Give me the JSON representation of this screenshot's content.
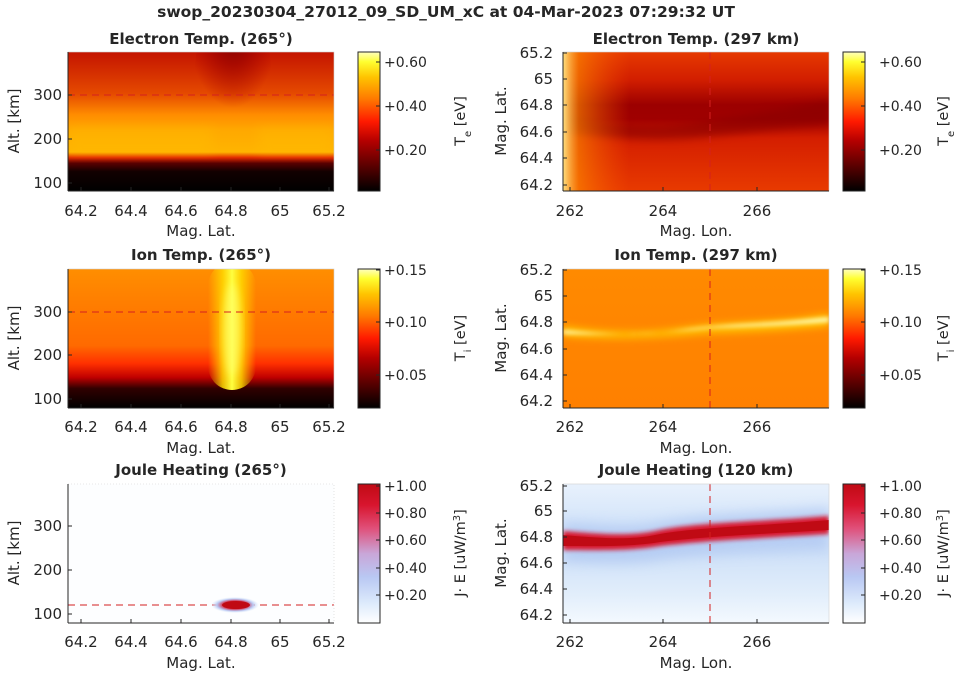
{
  "figure": {
    "title": "swop_20230304_27012_09_SD_UM_xC at 04-Mar-2023 07:29:32 UT"
  },
  "colors": {
    "hot": [
      "#000000",
      "#5a0000",
      "#b40000",
      "#ff1a00",
      "#ff7800",
      "#ffc400",
      "#ffff30",
      "#ffffc0"
    ],
    "joule": [
      "#ffffff",
      "#dbe9fb",
      "#b9c8f3",
      "#c9a6d8",
      "#e0507a",
      "#d8152e",
      "#c00a14"
    ],
    "dashed_line": "#d42020"
  },
  "panels": [
    {
      "id": "te-alt",
      "title": "Electron Temp. (265°)",
      "xlabel": "Mag. Lat.",
      "ylabel": "Alt. [km]",
      "xticks": [
        "64.2",
        "64.4",
        "64.6",
        "64.8",
        "65",
        "65.2"
      ],
      "yticks": [
        "100",
        "200",
        "300"
      ],
      "colorbar_ticks": [
        "+0.20",
        "+0.40",
        "+0.60"
      ],
      "colorbar_label": "T",
      "colorbar_sub": "e",
      "colorbar_unit": " [eV]",
      "colormap": "hot"
    },
    {
      "id": "te-map",
      "title": "Electron Temp. (297 km)",
      "xlabel": "Mag. Lon.",
      "ylabel": "Mag. Lat.",
      "xticks": [
        "262",
        "264",
        "266"
      ],
      "yticks": [
        "64.2",
        "64.4",
        "64.6",
        "64.8",
        "65",
        "65.2"
      ],
      "colorbar_ticks": [
        "+0.20",
        "+0.40",
        "+0.60"
      ],
      "colorbar_label": "T",
      "colorbar_sub": "e",
      "colorbar_unit": " [eV]",
      "colormap": "hot"
    },
    {
      "id": "ti-alt",
      "title": "Ion Temp. (265°)",
      "xlabel": "Mag. Lat.",
      "ylabel": "Alt. [km]",
      "xticks": [
        "64.2",
        "64.4",
        "64.6",
        "64.8",
        "65",
        "65.2"
      ],
      "yticks": [
        "100",
        "200",
        "300"
      ],
      "colorbar_ticks": [
        "+0.05",
        "+0.10",
        "+0.15"
      ],
      "colorbar_label": "T",
      "colorbar_sub": "i",
      "colorbar_unit": " [eV]",
      "colormap": "hot"
    },
    {
      "id": "ti-map",
      "title": "Ion Temp. (297 km)",
      "xlabel": "Mag. Lon.",
      "ylabel": "Mag. Lat.",
      "xticks": [
        "262",
        "264",
        "266"
      ],
      "yticks": [
        "64.2",
        "64.4",
        "64.6",
        "64.8",
        "65",
        "65.2"
      ],
      "colorbar_ticks": [
        "+0.05",
        "+0.10",
        "+0.15"
      ],
      "colorbar_label": "T",
      "colorbar_sub": "i",
      "colorbar_unit": " [eV]",
      "colormap": "hot"
    },
    {
      "id": "joule-alt",
      "title": "Joule Heating (265°)",
      "xlabel": "Mag. Lat.",
      "ylabel": "Alt. [km]",
      "xticks": [
        "64.2",
        "64.4",
        "64.6",
        "64.8",
        "65",
        "65.2"
      ],
      "yticks": [
        "100",
        "200",
        "300"
      ],
      "colorbar_ticks": [
        "+0.20",
        "+0.40",
        "+0.60",
        "+0.80",
        "+1.00"
      ],
      "colorbar_label": "J· E [uW/m",
      "colorbar_sup": "3",
      "colorbar_unit": "]",
      "colormap": "joule"
    },
    {
      "id": "joule-map",
      "title": "Joule Heating (120 km)",
      "xlabel": "Mag. Lon.",
      "ylabel": "Mag. Lat.",
      "xticks": [
        "262",
        "264",
        "266"
      ],
      "yticks": [
        "64.2",
        "64.4",
        "64.6",
        "64.8",
        "65",
        "65.2"
      ],
      "colorbar_ticks": [
        "+0.20",
        "+0.40",
        "+0.60",
        "+0.80",
        "+1.00"
      ],
      "colorbar_label": "J· E [uW/m",
      "colorbar_sup": "3",
      "colorbar_unit": "]",
      "colormap": "joule"
    }
  ],
  "chart_data": [
    {
      "type": "heatmap",
      "title": "Electron Temp. (265°)",
      "xlabel": "Mag. Lat.",
      "ylabel": "Alt. [km]",
      "xlim": [
        64.13,
        65.25
      ],
      "ylim": [
        78,
        398
      ],
      "colorbar": {
        "label": "T_e [eV]",
        "range": [
          0.02,
          0.65
        ],
        "ticks": [
          0.2,
          0.4,
          0.6
        ]
      },
      "reference_line": {
        "axis": "y",
        "value": 300,
        "style": "dashed"
      },
      "features": [
        {
          "description": "dark cold band",
          "alt_range": [
            78,
            150
          ],
          "value": 0.05
        },
        {
          "description": "warm band",
          "alt_range": [
            150,
            260
          ],
          "value": 0.45
        },
        {
          "description": "cooler patch",
          "center_lat": 64.8,
          "alt_range": [
            230,
            398
          ],
          "value": 0.15
        }
      ]
    },
    {
      "type": "heatmap",
      "title": "Electron Temp. (297 km)",
      "xlabel": "Mag. Lon.",
      "ylabel": "Mag. Lat.",
      "xlim": [
        261.8,
        267.5
      ],
      "ylim": [
        64.15,
        65.25
      ],
      "colorbar": {
        "label": "T_e [eV]",
        "range": [
          0.02,
          0.65
        ],
        "ticks": [
          0.2,
          0.4,
          0.6
        ]
      },
      "reference_line": {
        "axis": "x",
        "value": 265,
        "style": "dashed"
      },
      "features": [
        {
          "description": "cool band",
          "lat_center": 64.75,
          "value": 0.18
        },
        {
          "description": "warm edge",
          "lon": 261.8,
          "lat_center": 64.45,
          "value": 0.6
        }
      ]
    },
    {
      "type": "heatmap",
      "title": "Ion Temp. (265°)",
      "xlabel": "Mag. Lat.",
      "ylabel": "Alt. [km]",
      "xlim": [
        64.13,
        65.25
      ],
      "ylim": [
        78,
        398
      ],
      "colorbar": {
        "label": "T_i [eV]",
        "range": [
          0.015,
          0.15
        ],
        "ticks": [
          0.05,
          0.1,
          0.15
        ]
      },
      "reference_line": {
        "axis": "y",
        "value": 300,
        "style": "dashed"
      },
      "features": [
        {
          "description": "hot column",
          "center_lat": 64.8,
          "alt_range": [
            130,
            398
          ],
          "value": 0.145
        },
        {
          "description": "cold band",
          "alt_range": [
            78,
            120
          ],
          "value": 0.02
        }
      ]
    },
    {
      "type": "heatmap",
      "title": "Ion Temp. (297 km)",
      "xlabel": "Mag. Lon.",
      "ylabel": "Mag. Lat.",
      "xlim": [
        261.8,
        267.5
      ],
      "ylim": [
        64.15,
        65.25
      ],
      "colorbar": {
        "label": "T_i [eV]",
        "range": [
          0.015,
          0.15
        ],
        "ticks": [
          0.05,
          0.1,
          0.15
        ]
      },
      "reference_line": {
        "axis": "x",
        "value": 265,
        "style": "dashed"
      },
      "features": [
        {
          "description": "hot arc",
          "lon_range": [
            261.8,
            267.5
          ],
          "lat_range": [
            64.72,
            64.88
          ],
          "value": 0.15
        },
        {
          "description": "background",
          "value": 0.095
        }
      ]
    },
    {
      "type": "heatmap",
      "title": "Joule Heating (265°)",
      "xlabel": "Mag. Lat.",
      "ylabel": "Alt. [km]",
      "xlim": [
        64.13,
        65.25
      ],
      "ylim": [
        78,
        398
      ],
      "colorbar": {
        "label": "J· E [uW/m^3]",
        "range": [
          0.0,
          1.05
        ],
        "ticks": [
          0.2,
          0.4,
          0.6,
          0.8,
          1.0
        ]
      },
      "reference_line": {
        "axis": "y",
        "value": 120,
        "style": "dashed"
      },
      "features": [
        {
          "description": "heating spot",
          "center_lat": 64.82,
          "center_alt": 120,
          "value": 1.0
        }
      ]
    },
    {
      "type": "heatmap",
      "title": "Joule Heating (120 km)",
      "xlabel": "Mag. Lon.",
      "ylabel": "Mag. Lat.",
      "xlim": [
        261.8,
        267.5
      ],
      "ylim": [
        64.15,
        65.25
      ],
      "colorbar": {
        "label": "J· E [uW/m^3]",
        "range": [
          0.0,
          1.05
        ],
        "ticks": [
          0.2,
          0.4,
          0.6,
          0.8,
          1.0
        ]
      },
      "reference_line": {
        "axis": "x",
        "value": 265,
        "style": "dashed"
      },
      "features": [
        {
          "description": "heating arc",
          "lon_range": [
            261.8,
            267.5
          ],
          "lat_range": [
            64.72,
            64.9
          ],
          "value": 1.0
        }
      ]
    }
  ]
}
